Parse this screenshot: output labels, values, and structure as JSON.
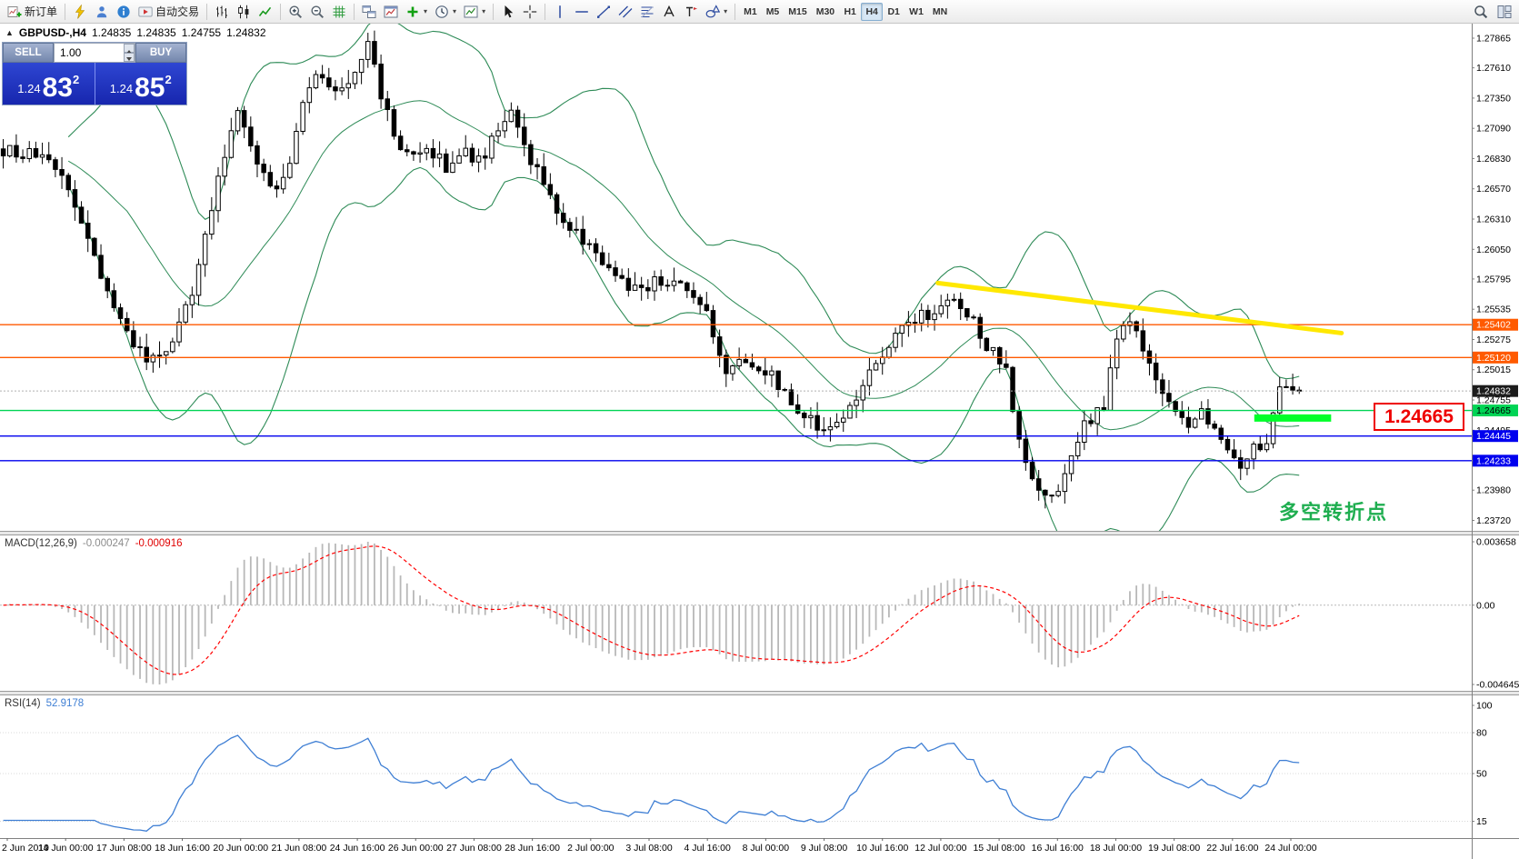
{
  "toolbar": {
    "groups": [
      [
        {
          "n": "new-order-button",
          "i": "new-order-icon",
          "t": "新订单"
        }
      ],
      [
        {
          "n": "charts-popup-button",
          "i": "lightning-icon"
        },
        {
          "n": "community-button",
          "i": "person-icon"
        },
        {
          "n": "news-button",
          "i": "info-icon"
        },
        {
          "n": "autotrading-button",
          "i": "autotrading-icon",
          "t": "自动交易"
        }
      ],
      [
        {
          "n": "bar-chart-button",
          "i": "bar-chart-icon"
        },
        {
          "n": "candle-chart-button",
          "i": "candlestick-icon"
        },
        {
          "n": "line-chart-button",
          "i": "line-chart-icon"
        }
      ],
      [
        {
          "n": "zoom-in-button",
          "i": "zoom-in-icon"
        },
        {
          "n": "zoom-out-button",
          "i": "zoom-out-icon"
        },
        {
          "n": "grid-button",
          "i": "grid-icon"
        }
      ],
      [
        {
          "n": "tile-windows-button",
          "i": "tile-icon"
        },
        {
          "n": "chart-window-button",
          "i": "window-icon"
        },
        {
          "n": "indicators-button",
          "i": "plus-icon",
          "d": 1
        },
        {
          "n": "periods-button",
          "i": "clock-icon",
          "d": 1
        },
        {
          "n": "templates-button",
          "i": "template-icon",
          "d": 1
        }
      ],
      [
        {
          "n": "cursor-button",
          "i": "cursor-icon"
        },
        {
          "n": "crosshair-button",
          "i": "crosshair-icon"
        }
      ],
      [
        {
          "n": "vertical-line-button",
          "i": "vline-icon"
        },
        {
          "n": "horizontal-line-button",
          "i": "hline-icon"
        },
        {
          "n": "trendline-button",
          "i": "trendline-icon"
        },
        {
          "n": "channel-button",
          "i": "channel-icon"
        },
        {
          "n": "fibonacci-button",
          "i": "fibonacci-icon"
        },
        {
          "n": "text-button",
          "i": "text-icon"
        },
        {
          "n": "label-button",
          "i": "label-icon"
        },
        {
          "n": "shapes-button",
          "i": "shapes-icon",
          "d": 1
        }
      ]
    ],
    "timeframes": [
      "M1",
      "M5",
      "M15",
      "M30",
      "H1",
      "H4",
      "D1",
      "W1",
      "MN"
    ],
    "active_timeframe": "H4",
    "right_buttons": [
      {
        "n": "search-button",
        "i": "search-icon"
      },
      {
        "n": "new-window-button",
        "i": "layout-icon"
      }
    ]
  },
  "one_click": {
    "sell": "SELL",
    "buy": "BUY",
    "volume": "1.00",
    "bid": {
      "prefix": "1.24",
      "big": "83",
      "sup": "2"
    },
    "ask": {
      "prefix": "1.24",
      "big": "85",
      "sup": "2"
    }
  },
  "chart_header": {
    "collapse_icon": "▲",
    "symbol": "GBPUSD-,H4",
    "open": "1.24835",
    "high": "1.24835",
    "low": "1.24755",
    "close": "1.24832"
  },
  "annotations": {
    "price_callout": "1.24665",
    "note": "多空转折点"
  },
  "chart_data": {
    "type": "candlestick",
    "symbol": "GBPUSD",
    "period": "H4",
    "candle_count": 200,
    "last_price": 1.24832,
    "price_axis": {
      "min": 1.2363,
      "max": 1.2799,
      "ticks": [
        1.27865,
        1.2761,
        1.2735,
        1.2709,
        1.2683,
        1.2657,
        1.2631,
        1.2605,
        1.25795,
        1.25535,
        1.25275,
        1.25015,
        1.24755,
        1.24495,
        1.24235,
        1.2398,
        1.2372
      ]
    },
    "price_path": [
      [
        0,
        1.269
      ],
      [
        0.026,
        1.2685
      ],
      [
        0.048,
        1.2665
      ],
      [
        0.063,
        1.262
      ],
      [
        0.081,
        1.2565
      ],
      [
        0.096,
        1.253
      ],
      [
        0.111,
        1.2508
      ],
      [
        0.125,
        1.2515
      ],
      [
        0.144,
        1.256
      ],
      [
        0.159,
        1.263
      ],
      [
        0.173,
        1.27
      ],
      [
        0.183,
        1.2725
      ],
      [
        0.193,
        1.269
      ],
      [
        0.21,
        1.265
      ],
      [
        0.221,
        1.268
      ],
      [
        0.235,
        1.2745
      ],
      [
        0.247,
        1.2755
      ],
      [
        0.26,
        1.274
      ],
      [
        0.272,
        1.2762
      ],
      [
        0.282,
        1.2785
      ],
      [
        0.292,
        1.2735
      ],
      [
        0.303,
        1.27
      ],
      [
        0.314,
        1.268
      ],
      [
        0.328,
        1.2692
      ],
      [
        0.343,
        1.2675
      ],
      [
        0.354,
        1.269
      ],
      [
        0.369,
        1.268
      ],
      [
        0.39,
        1.2725
      ],
      [
        0.402,
        1.269
      ],
      [
        0.413,
        1.2672
      ],
      [
        0.432,
        1.263
      ],
      [
        0.45,
        1.261
      ],
      [
        0.472,
        1.258
      ],
      [
        0.491,
        1.257
      ],
      [
        0.509,
        1.258
      ],
      [
        0.528,
        1.257
      ],
      [
        0.545,
        1.2545
      ],
      [
        0.557,
        1.2495
      ],
      [
        0.572,
        1.251
      ],
      [
        0.59,
        1.25
      ],
      [
        0.609,
        1.247
      ],
      [
        0.631,
        1.245
      ],
      [
        0.649,
        1.2462
      ],
      [
        0.664,
        1.249
      ],
      [
        0.683,
        1.252
      ],
      [
        0.701,
        1.2545
      ],
      [
        0.72,
        1.2552
      ],
      [
        0.731,
        1.2562
      ],
      [
        0.745,
        1.2548
      ],
      [
        0.76,
        1.252
      ],
      [
        0.773,
        1.2505
      ],
      [
        0.781,
        1.245
      ],
      [
        0.793,
        1.2405
      ],
      [
        0.808,
        1.239
      ],
      [
        0.819,
        1.241
      ],
      [
        0.834,
        1.2455
      ],
      [
        0.849,
        1.247
      ],
      [
        0.86,
        1.2535
      ],
      [
        0.871,
        1.254
      ],
      [
        0.882,
        1.251
      ],
      [
        0.897,
        1.248
      ],
      [
        0.911,
        1.2455
      ],
      [
        0.926,
        1.2465
      ],
      [
        0.941,
        1.2445
      ],
      [
        0.953,
        1.242
      ],
      [
        0.965,
        1.2435
      ],
      [
        0.976,
        1.244
      ],
      [
        0.987,
        1.2498
      ],
      [
        0.995,
        1.248
      ],
      [
        1,
        1.24832
      ]
    ],
    "levels": [
      {
        "price": 1.25402,
        "label": "1.25402",
        "color": "#ff5a00",
        "text_color": "#ffffff",
        "width": 1.4
      },
      {
        "price": 1.2512,
        "label": "1.25120",
        "color": "#ff5a00",
        "text_color": "#ffffff",
        "width": 1.4
      },
      {
        "price": 1.24665,
        "label": "1.24665",
        "color": "#00d455",
        "text_color": "#000000",
        "width": 1.4
      },
      {
        "price": 1.24445,
        "label": "1.24445",
        "color": "#0000ee",
        "text_color": "#ffffff",
        "width": 1.4
      },
      {
        "price": 1.24233,
        "label": "1.24233",
        "color": "#0000ee",
        "text_color": "#ffffff",
        "width": 1.4
      }
    ],
    "current_price": {
      "value": 1.24832,
      "label": "1.24832",
      "box_color": "#1c1c1c",
      "text_color": "#ffffff"
    },
    "objects": {
      "trendline": {
        "t1": 0.72,
        "p1": 1.2576,
        "t2": 1.03,
        "p2": 1.2533,
        "color": "#ffe800",
        "width": 5
      },
      "highlight": {
        "t1": 0.963,
        "t2": 1.022,
        "price": 1.246,
        "color": "#00ff2a",
        "width": 8
      }
    },
    "indicators": {
      "bollinger": {
        "name": "Bollinger Bands",
        "period": 20,
        "deviation": 2,
        "color": "#2e8b57"
      },
      "macd": {
        "label": "MACD(12,26,9)",
        "value_main": "-0.000247",
        "value_signal": "-0.000916",
        "histogram_color": "#b8b8b8",
        "signal_color": "#ff0000",
        "axis_ticks": [
          "0.003658",
          "0.00",
          "-0.004645"
        ]
      },
      "rsi": {
        "label": "RSI(14)",
        "value": "52.9178",
        "color": "#3f7fd4",
        "axis_ticks": [
          100,
          80,
          50,
          15
        ]
      }
    },
    "time_axis": [
      "2 Jun 2019",
      "14 Jun 00:00",
      "17 Jun 08:00",
      "18 Jun 16:00",
      "20 Jun 00:00",
      "21 Jun 08:00",
      "24 Jun 16:00",
      "26 Jun 00:00",
      "27 Jun 08:00",
      "28 Jun 16:00",
      "2 Jul 00:00",
      "3 Jul 08:00",
      "4 Jul 16:00",
      "8 Jul 00:00",
      "9 Jul 08:00",
      "10 Jul 16:00",
      "12 Jul 00:00",
      "15 Jul 08:00",
      "16 Jul 16:00",
      "18 Jul 00:00",
      "19 Jul 08:00",
      "22 Jul 16:00",
      "24 Jul 00:00"
    ]
  }
}
